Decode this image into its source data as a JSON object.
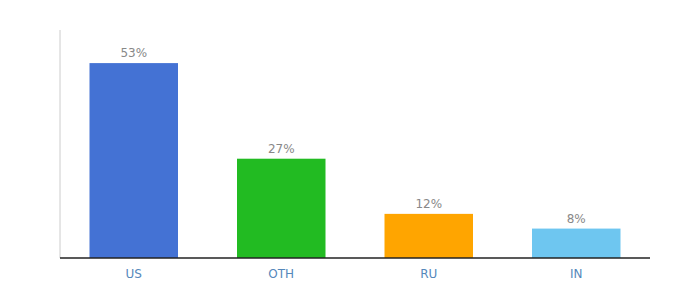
{
  "chart_data": {
    "type": "bar",
    "categories": [
      "US",
      "OTH",
      "RU",
      "IN"
    ],
    "values": [
      53,
      27,
      12,
      8
    ],
    "value_labels": [
      "53%",
      "27%",
      "12%",
      "8%"
    ],
    "colors": [
      "#4472d4",
      "#22bb22",
      "#ffa500",
      "#6ec6f0"
    ],
    "ylim": [
      0,
      62
    ],
    "data_labels": true,
    "tick_labels": "x",
    "grid": false
  }
}
